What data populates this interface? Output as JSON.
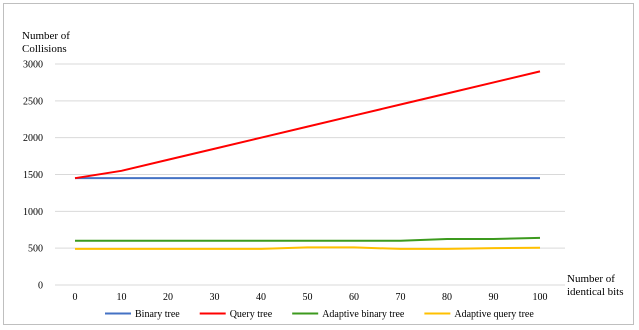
{
  "chart_data": {
    "type": "line",
    "title": "",
    "ylabel_lines": [
      "Number of",
      "Collisions"
    ],
    "xlabel_lines": [
      "Number of",
      "identical bits"
    ],
    "x": [
      0,
      10,
      20,
      30,
      40,
      50,
      60,
      70,
      80,
      90,
      100
    ],
    "x_tick_labels": [
      "0",
      "10",
      "20",
      "30",
      "40",
      "50",
      "60",
      "70",
      "80",
      "90",
      "100"
    ],
    "y_tick_labels": [
      "0",
      "500",
      "1000",
      "1500",
      "2000",
      "2500",
      "3000"
    ],
    "ylim": [
      0,
      3000
    ],
    "y_ticks": [
      0,
      500,
      1000,
      1500,
      2000,
      2500,
      3000
    ],
    "grid": "horizontal",
    "legend_position": "bottom",
    "series": [
      {
        "name": "Binary tree",
        "color": "#4472c4",
        "values": [
          1450,
          1450,
          1450,
          1450,
          1450,
          1450,
          1450,
          1450,
          1450,
          1450,
          1450
        ]
      },
      {
        "name": "Query tree",
        "color": "#ff0000",
        "values": [
          1450,
          1550,
          1700,
          1850,
          2000,
          2150,
          2300,
          2450,
          2600,
          2750,
          2900
        ]
      },
      {
        "name": "Adaptive binary tree",
        "color": "#3c9a1e",
        "values": [
          600,
          600,
          600,
          600,
          600,
          600,
          600,
          600,
          625,
          625,
          640
        ]
      },
      {
        "name": "Adaptive query tree",
        "color": "#ffc000",
        "values": [
          490,
          490,
          490,
          490,
          490,
          510,
          510,
          490,
          490,
          500,
          505
        ]
      }
    ]
  }
}
